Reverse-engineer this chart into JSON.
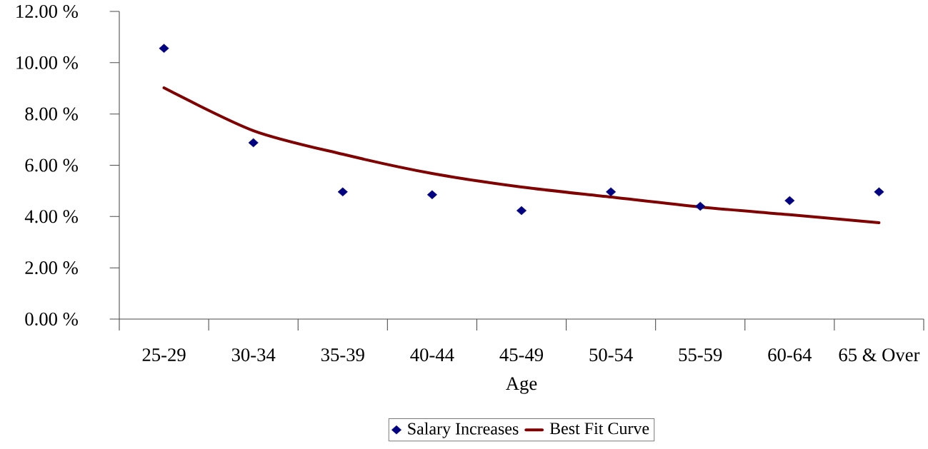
{
  "chart_data": {
    "type": "scatter",
    "xlabel": "Age",
    "categories": [
      "25-29",
      "30-34",
      "35-39",
      "40-44",
      "45-49",
      "50-54",
      "55-59",
      "60-64",
      "65 & Over"
    ],
    "series": [
      {
        "name": "Salary Increases",
        "marker": "diamond",
        "color": "#000080",
        "values": [
          10.56,
          6.88,
          4.96,
          4.85,
          4.23,
          4.96,
          4.4,
          4.62,
          4.96
        ]
      },
      {
        "name": "Best Fit Curve",
        "type": "line",
        "marker": "none",
        "line_style": "solid",
        "color": "#800000",
        "values": [
          9.02,
          7.35,
          6.43,
          5.68,
          5.15,
          4.76,
          4.37,
          4.07,
          3.76
        ]
      }
    ],
    "ylim": [
      0,
      12
    ],
    "yticks": [
      {
        "value": 0,
        "label": "0.00 %"
      },
      {
        "value": 2,
        "label": "2.00 %"
      },
      {
        "value": 4,
        "label": "4.00 %"
      },
      {
        "value": 6,
        "label": "6.00 %"
      },
      {
        "value": 8,
        "label": "8.00 %"
      },
      {
        "value": 10,
        "label": "10.00 %"
      },
      {
        "value": 12,
        "label": "12.00 %"
      }
    ],
    "legend": "bottom"
  }
}
